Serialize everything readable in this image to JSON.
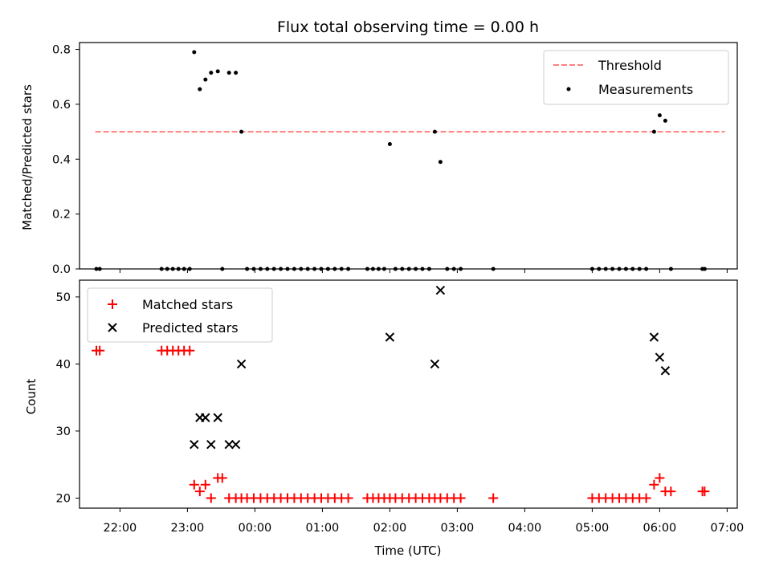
{
  "chart_data": [
    {
      "type": "scatter",
      "title": "Flux total observing time = 0.00 h",
      "xlabel": "",
      "ylabel": "Matched/Predicted stars",
      "x_range": [
        "21:24",
        "07:09"
      ],
      "ylim": [
        0,
        0.825
      ],
      "yticks": [
        0.0,
        0.2,
        0.4,
        0.6,
        0.8
      ],
      "ytick_labels": [
        "0.0",
        "0.2",
        "0.4",
        "0.6",
        "0.8"
      ],
      "grid": false,
      "legend_position": "upper right",
      "threshold": {
        "name": "Threshold",
        "y": 0.5,
        "x_start": "21:38",
        "x_end": "06:58",
        "color": "#ff7f7f",
        "style": "dashed"
      },
      "series": [
        {
          "name": "Measurements",
          "color": "#000000",
          "marker": "dot",
          "points": [
            {
              "x": "21:39",
              "y": 0.0
            },
            {
              "x": "21:42",
              "y": 0.0
            },
            {
              "x": "22:37",
              "y": 0.0
            },
            {
              "x": "22:42",
              "y": 0.0
            },
            {
              "x": "22:47",
              "y": 0.0
            },
            {
              "x": "22:52",
              "y": 0.0
            },
            {
              "x": "22:57",
              "y": 0.0
            },
            {
              "x": "23:02",
              "y": 0.0
            },
            {
              "x": "23:06",
              "y": 0.79
            },
            {
              "x": "23:11",
              "y": 0.655
            },
            {
              "x": "23:16",
              "y": 0.69
            },
            {
              "x": "23:21",
              "y": 0.715
            },
            {
              "x": "23:27",
              "y": 0.72
            },
            {
              "x": "23:37",
              "y": 0.715
            },
            {
              "x": "23:43",
              "y": 0.715
            },
            {
              "x": "23:48",
              "y": 0.5
            },
            {
              "x": "23:31",
              "y": 0.0
            },
            {
              "x": "23:53",
              "y": 0.0
            },
            {
              "x": "23:59",
              "y": 0.0
            },
            {
              "x": "00:05",
              "y": 0.0
            },
            {
              "x": "00:11",
              "y": 0.0
            },
            {
              "x": "00:17",
              "y": 0.0
            },
            {
              "x": "00:23",
              "y": 0.0
            },
            {
              "x": "00:29",
              "y": 0.0
            },
            {
              "x": "00:35",
              "y": 0.0
            },
            {
              "x": "00:41",
              "y": 0.0
            },
            {
              "x": "00:47",
              "y": 0.0
            },
            {
              "x": "00:53",
              "y": 0.0
            },
            {
              "x": "00:59",
              "y": 0.0
            },
            {
              "x": "01:05",
              "y": 0.0
            },
            {
              "x": "01:11",
              "y": 0.0
            },
            {
              "x": "01:17",
              "y": 0.0
            },
            {
              "x": "01:23",
              "y": 0.0
            },
            {
              "x": "01:40",
              "y": 0.0
            },
            {
              "x": "01:45",
              "y": 0.0
            },
            {
              "x": "01:50",
              "y": 0.0
            },
            {
              "x": "01:55",
              "y": 0.0
            },
            {
              "x": "02:00",
              "y": 0.455
            },
            {
              "x": "02:05",
              "y": 0.0
            },
            {
              "x": "02:11",
              "y": 0.0
            },
            {
              "x": "02:17",
              "y": 0.0
            },
            {
              "x": "02:23",
              "y": 0.0
            },
            {
              "x": "02:29",
              "y": 0.0
            },
            {
              "x": "02:35",
              "y": 0.0
            },
            {
              "x": "02:40",
              "y": 0.5
            },
            {
              "x": "02:45",
              "y": 0.39
            },
            {
              "x": "02:51",
              "y": 0.0
            },
            {
              "x": "02:57",
              "y": 0.0
            },
            {
              "x": "03:03",
              "y": 0.0
            },
            {
              "x": "03:32",
              "y": 0.0
            },
            {
              "x": "05:00",
              "y": 0.0
            },
            {
              "x": "05:06",
              "y": 0.0
            },
            {
              "x": "05:12",
              "y": 0.0
            },
            {
              "x": "05:18",
              "y": 0.0
            },
            {
              "x": "05:24",
              "y": 0.0
            },
            {
              "x": "05:30",
              "y": 0.0
            },
            {
              "x": "05:36",
              "y": 0.0
            },
            {
              "x": "05:42",
              "y": 0.0
            },
            {
              "x": "05:48",
              "y": 0.0
            },
            {
              "x": "05:55",
              "y": 0.5
            },
            {
              "x": "06:00",
              "y": 0.56
            },
            {
              "x": "06:05",
              "y": 0.54
            },
            {
              "x": "06:10",
              "y": 0.0
            },
            {
              "x": "06:38",
              "y": 0.0
            },
            {
              "x": "06:40",
              "y": 0.0
            }
          ]
        }
      ]
    },
    {
      "type": "scatter",
      "title": "",
      "xlabel": "Time (UTC)",
      "ylabel": "Count",
      "x_range": [
        "21:24",
        "07:09"
      ],
      "ylim": [
        18.5,
        52.5
      ],
      "yticks": [
        20,
        30,
        40,
        50
      ],
      "ytick_labels": [
        "20",
        "30",
        "40",
        "50"
      ],
      "xticks": [
        "22:00",
        "23:00",
        "00:00",
        "01:00",
        "02:00",
        "03:00",
        "04:00",
        "05:00",
        "06:00",
        "07:00"
      ],
      "xtick_labels": [
        "22:00",
        "23:00",
        "00:00",
        "01:00",
        "02:00",
        "03:00",
        "04:00",
        "05:00",
        "06:00",
        "07:00"
      ],
      "grid": false,
      "legend_position": "upper left",
      "series": [
        {
          "name": "Matched stars",
          "color": "#ff0000",
          "marker": "plus",
          "points": [
            {
              "x": "21:39",
              "y": 42
            },
            {
              "x": "21:42",
              "y": 42
            },
            {
              "x": "22:37",
              "y": 42
            },
            {
              "x": "22:42",
              "y": 42
            },
            {
              "x": "22:47",
              "y": 42
            },
            {
              "x": "22:52",
              "y": 42
            },
            {
              "x": "22:57",
              "y": 42
            },
            {
              "x": "23:02",
              "y": 42
            },
            {
              "x": "23:06",
              "y": 22
            },
            {
              "x": "23:11",
              "y": 21
            },
            {
              "x": "23:16",
              "y": 22
            },
            {
              "x": "23:21",
              "y": 20
            },
            {
              "x": "23:27",
              "y": 23
            },
            {
              "x": "23:31",
              "y": 23
            },
            {
              "x": "23:37",
              "y": 20
            },
            {
              "x": "23:43",
              "y": 20
            },
            {
              "x": "23:48",
              "y": 20
            },
            {
              "x": "23:53",
              "y": 20
            },
            {
              "x": "23:59",
              "y": 20
            },
            {
              "x": "00:05",
              "y": 20
            },
            {
              "x": "00:11",
              "y": 20
            },
            {
              "x": "00:17",
              "y": 20
            },
            {
              "x": "00:23",
              "y": 20
            },
            {
              "x": "00:29",
              "y": 20
            },
            {
              "x": "00:35",
              "y": 20
            },
            {
              "x": "00:41",
              "y": 20
            },
            {
              "x": "00:47",
              "y": 20
            },
            {
              "x": "00:53",
              "y": 20
            },
            {
              "x": "00:59",
              "y": 20
            },
            {
              "x": "01:05",
              "y": 20
            },
            {
              "x": "01:11",
              "y": 20
            },
            {
              "x": "01:17",
              "y": 20
            },
            {
              "x": "01:23",
              "y": 20
            },
            {
              "x": "01:40",
              "y": 20
            },
            {
              "x": "01:45",
              "y": 20
            },
            {
              "x": "01:50",
              "y": 20
            },
            {
              "x": "01:55",
              "y": 20
            },
            {
              "x": "02:00",
              "y": 20
            },
            {
              "x": "02:05",
              "y": 20
            },
            {
              "x": "02:11",
              "y": 20
            },
            {
              "x": "02:17",
              "y": 20
            },
            {
              "x": "02:23",
              "y": 20
            },
            {
              "x": "02:29",
              "y": 20
            },
            {
              "x": "02:35",
              "y": 20
            },
            {
              "x": "02:40",
              "y": 20
            },
            {
              "x": "02:45",
              "y": 20
            },
            {
              "x": "02:51",
              "y": 20
            },
            {
              "x": "02:57",
              "y": 20
            },
            {
              "x": "03:03",
              "y": 20
            },
            {
              "x": "03:32",
              "y": 20
            },
            {
              "x": "05:00",
              "y": 20
            },
            {
              "x": "05:06",
              "y": 20
            },
            {
              "x": "05:12",
              "y": 20
            },
            {
              "x": "05:18",
              "y": 20
            },
            {
              "x": "05:24",
              "y": 20
            },
            {
              "x": "05:30",
              "y": 20
            },
            {
              "x": "05:36",
              "y": 20
            },
            {
              "x": "05:42",
              "y": 20
            },
            {
              "x": "05:48",
              "y": 20
            },
            {
              "x": "05:55",
              "y": 22
            },
            {
              "x": "06:00",
              "y": 23
            },
            {
              "x": "06:05",
              "y": 21
            },
            {
              "x": "06:10",
              "y": 21
            },
            {
              "x": "06:38",
              "y": 21
            },
            {
              "x": "06:40",
              "y": 21
            }
          ]
        },
        {
          "name": "Predicted stars",
          "color": "#000000",
          "marker": "x",
          "points": [
            {
              "x": "23:06",
              "y": 28
            },
            {
              "x": "23:11",
              "y": 32
            },
            {
              "x": "23:16",
              "y": 32
            },
            {
              "x": "23:21",
              "y": 28
            },
            {
              "x": "23:27",
              "y": 32
            },
            {
              "x": "23:37",
              "y": 28
            },
            {
              "x": "23:43",
              "y": 28
            },
            {
              "x": "23:48",
              "y": 40
            },
            {
              "x": "02:00",
              "y": 44
            },
            {
              "x": "02:40",
              "y": 40
            },
            {
              "x": "02:45",
              "y": 51
            },
            {
              "x": "05:55",
              "y": 44
            },
            {
              "x": "06:00",
              "y": 41
            },
            {
              "x": "06:05",
              "y": 39
            }
          ]
        }
      ]
    }
  ]
}
